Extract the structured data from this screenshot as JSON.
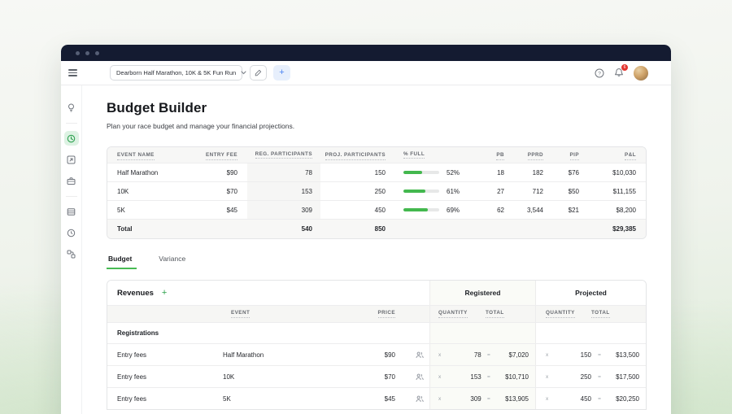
{
  "toolbar": {
    "race_selector": "Dearborn Half Marathon, 10K & 5K Fun Run",
    "badge_count": "6"
  },
  "page": {
    "title": "Budget Builder",
    "subtitle": "Plan your race budget and manage your financial projections."
  },
  "summary_table": {
    "columns": {
      "event": "EVENT NAME",
      "entry_fee": "ENTRY FEE",
      "reg": "REG. PARTICIPANTS",
      "proj": "PROJ. PARTICIPANTS",
      "full": "% FULL",
      "pb": "PB",
      "pprd": "PPRD",
      "pip": "PIP",
      "pl": "P&L"
    },
    "rows": [
      {
        "event": "Half Marathon",
        "entry_fee": "$90",
        "reg": "78",
        "proj": "150",
        "full_pct": 52,
        "full_label": "52%",
        "pb": "18",
        "pprd": "182",
        "pip": "$76",
        "pl": "$10,030"
      },
      {
        "event": "10K",
        "entry_fee": "$70",
        "reg": "153",
        "proj": "250",
        "full_pct": 61,
        "full_label": "61%",
        "pb": "27",
        "pprd": "712",
        "pip": "$50",
        "pl": "$11,155"
      },
      {
        "event": "5K",
        "entry_fee": "$45",
        "reg": "309",
        "proj": "450",
        "full_pct": 69,
        "full_label": "69%",
        "pb": "62",
        "pprd": "3,544",
        "pip": "$21",
        "pl": "$8,200"
      }
    ],
    "total": {
      "label": "Total",
      "reg": "540",
      "proj": "850",
      "pl": "$29,385"
    }
  },
  "tabs": {
    "budget": "Budget",
    "variance": "Variance"
  },
  "revenues": {
    "title": "Revenues",
    "add_label": "+",
    "groups": {
      "registered": "Registered",
      "projected": "Projected"
    },
    "columns": {
      "event": "EVENT",
      "price": "PRICE",
      "quantity": "QUANTITY",
      "total": "TOTAL"
    },
    "section": "Registrations",
    "multiply": "x",
    "equals": "=",
    "rows": [
      {
        "label": "Entry fees",
        "event": "Half Marathon",
        "price": "$90",
        "reg_qty": "78",
        "reg_total": "$7,020",
        "proj_qty": "150",
        "proj_total": "$13,500"
      },
      {
        "label": "Entry fees",
        "event": "10K",
        "price": "$70",
        "reg_qty": "153",
        "reg_total": "$10,710",
        "proj_qty": "250",
        "proj_total": "$17,500"
      },
      {
        "label": "Entry fees",
        "event": "5K",
        "price": "$45",
        "reg_qty": "309",
        "reg_total": "$13,905",
        "proj_qty": "450",
        "proj_total": "$20,250"
      }
    ]
  },
  "colors": {
    "accent_green": "#43b84e",
    "navy_titlebar": "#141b31",
    "badge_red": "#e3342f"
  }
}
